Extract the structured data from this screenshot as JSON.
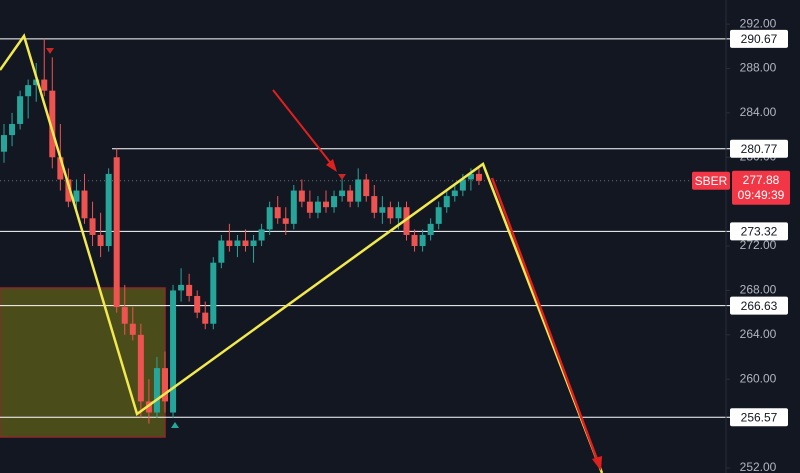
{
  "chart_data": {
    "type": "candlestick",
    "symbol": "SBER",
    "last_price": 277.88,
    "countdown": "09:49:39",
    "up_color": "#26a69a",
    "down_color": "#ef5350",
    "ylim": [
      251.55,
      294.17
    ],
    "yticks": [
      {
        "value": 292,
        "label": "292.00"
      },
      {
        "value": 288,
        "label": "288.00"
      },
      {
        "value": 284,
        "label": "284.00"
      },
      {
        "value": 280,
        "label": "280.00"
      },
      {
        "value": 272,
        "label": "272.00"
      },
      {
        "value": 268,
        "label": "268.00"
      },
      {
        "value": 264,
        "label": "264.00"
      },
      {
        "value": 260,
        "label": "260.00"
      },
      {
        "value": 252,
        "label": "252.00"
      }
    ],
    "levels": [
      290.67,
      280.77,
      273.32,
      266.63,
      256.57
    ],
    "open": [
      280.5,
      282,
      283,
      285.5,
      286.5,
      287,
      286,
      280,
      278,
      276,
      277,
      274.5,
      273,
      272,
      280,
      266.5,
      265,
      264,
      258,
      257,
      261,
      257,
      268,
      268.5,
      267.5,
      266,
      265,
      270.5,
      272.5,
      272,
      272.5,
      272,
      272.5,
      273.5,
      275.5,
      274.5,
      274,
      277,
      276,
      275,
      276,
      275.5,
      276.5,
      277,
      276,
      278,
      276.5,
      275,
      275.5,
      274.5,
      275.5,
      273,
      272,
      273,
      274,
      275.5,
      276.5,
      277,
      278,
      278.5
    ],
    "high": [
      283,
      284,
      286,
      287,
      288.5,
      290.67,
      289,
      283,
      279,
      278,
      278.5,
      276,
      275,
      279,
      280.77,
      268.5,
      266.5,
      265,
      260,
      262,
      262.5,
      268.5,
      270,
      269.5,
      268,
      267,
      271,
      273,
      274,
      273,
      273.5,
      273,
      274,
      276,
      276.5,
      275.5,
      277.5,
      278,
      277,
      276.5,
      277,
      277,
      278,
      277.5,
      279,
      278.5,
      277.5,
      276.5,
      276,
      276,
      276,
      273.5,
      273.5,
      274.5,
      276,
      277,
      277.5,
      278.5,
      279,
      279
    ],
    "low": [
      279.5,
      281,
      282.5,
      283.5,
      285,
      285.5,
      279,
      277,
      275.5,
      275,
      274,
      272,
      271,
      271.5,
      266,
      264,
      263.5,
      256.57,
      256,
      256.5,
      257,
      256.5,
      267,
      267,
      265.5,
      264.5,
      264.5,
      270,
      271.5,
      271,
      271.5,
      270.5,
      272,
      273,
      274,
      273,
      273.5,
      275.5,
      274.5,
      274.5,
      275,
      275,
      276,
      275.5,
      275.5,
      276,
      274.5,
      274,
      274,
      273.5,
      272.5,
      271.5,
      271.5,
      272.5,
      273.5,
      275,
      276,
      276.5,
      277,
      277.5
    ],
    "close": [
      282,
      283,
      285.5,
      286.5,
      287,
      286,
      280,
      278,
      276,
      277,
      274.5,
      273,
      272,
      278.5,
      266.5,
      265,
      264,
      258,
      257,
      261,
      258,
      268,
      268.5,
      267.5,
      266,
      265,
      270.5,
      272.5,
      272,
      272.5,
      272,
      272.5,
      273.5,
      275.5,
      274.5,
      274,
      277,
      276,
      275,
      276,
      275.5,
      276.5,
      277,
      276,
      278,
      276.5,
      275,
      275.5,
      274.5,
      275.5,
      273,
      272,
      273,
      274,
      275.5,
      276.5,
      277,
      278,
      278.5,
      277.88
    ]
  }
}
